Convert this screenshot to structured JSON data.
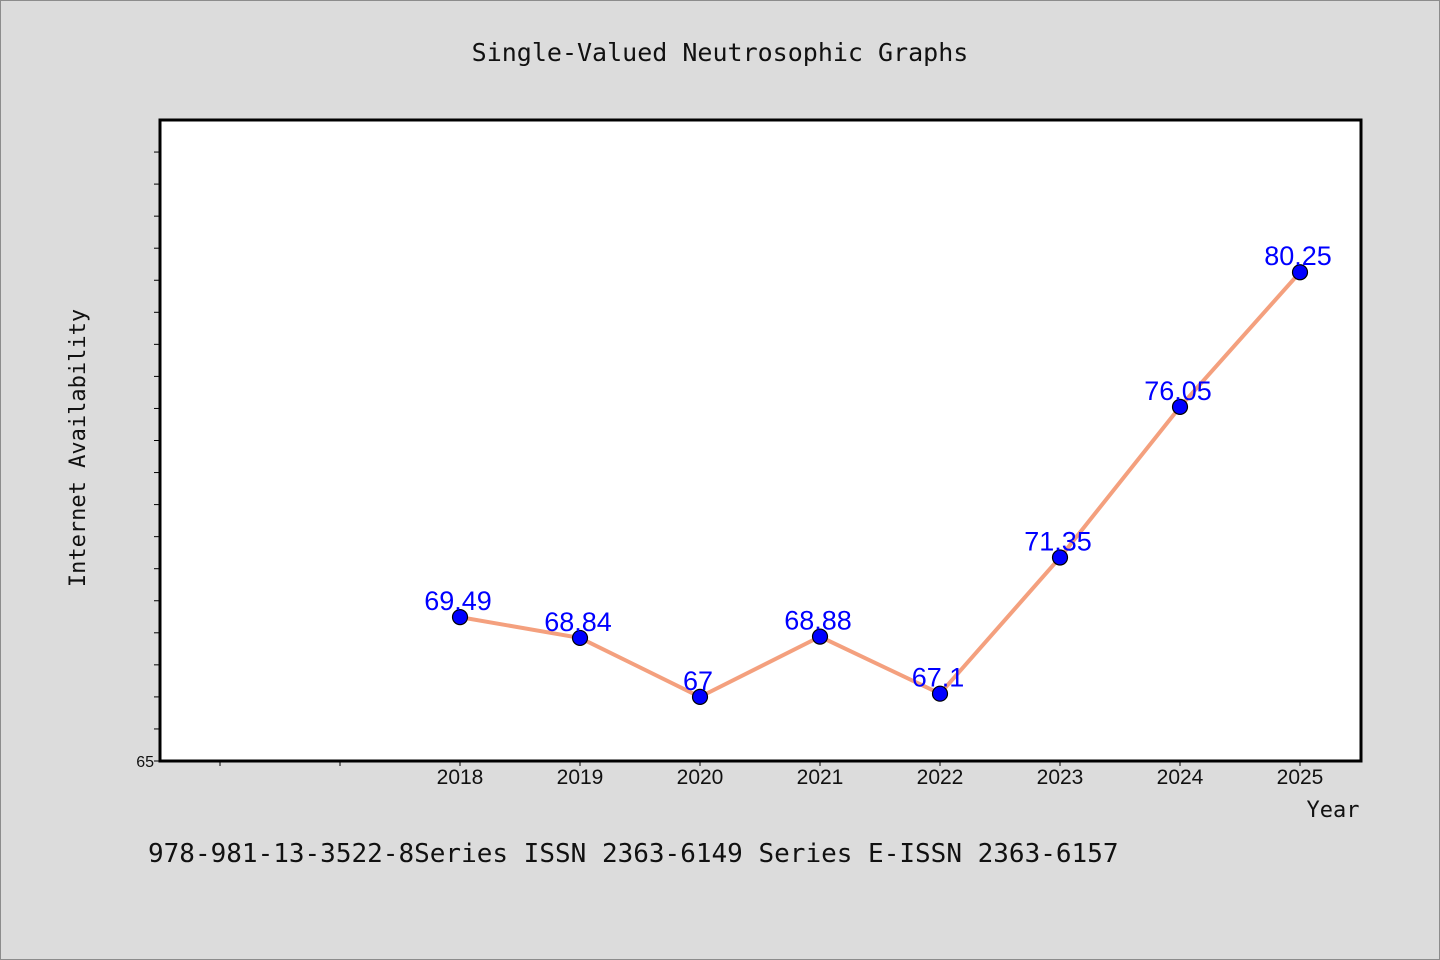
{
  "footer": "978-981-13-3522-8Series ISSN 2363-6149 Series E-ISSN 2363-6157",
  "colors": {
    "background": "#dcdcdc",
    "plot_area": "#ffffff",
    "line": "#f4a07e",
    "marker": "#0000ff",
    "data_label": "#0000ff"
  },
  "chart_data": {
    "type": "line",
    "title": "Single-Valued Neutrosophic Graphs",
    "xlabel": "Year",
    "ylabel": "Internet Availability",
    "categories": [
      "2018",
      "2019",
      "2020",
      "2021",
      "2022",
      "2023",
      "2024",
      "2025"
    ],
    "series": [
      {
        "values": [
          69.49,
          68.84,
          67,
          68.88,
          67.1,
          71.35,
          76.05,
          80.25
        ]
      }
    ],
    "data_labels": [
      "69.49",
      "68.84",
      "67",
      "68.88",
      "67.1",
      "71.35",
      "76.05",
      "80.25"
    ],
    "y_tick_labels": [
      "65"
    ],
    "ylim": [
      65,
      85
    ],
    "grid": false,
    "legend": "none"
  }
}
